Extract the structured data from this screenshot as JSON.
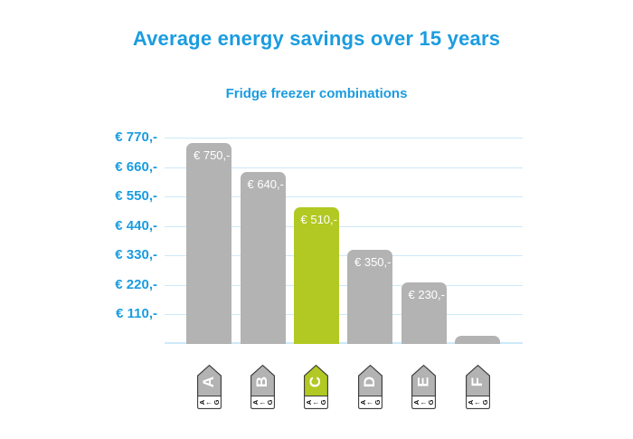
{
  "header": {
    "title": "Average energy savings over 15 years",
    "subtitle": "Fridge freezer combinations"
  },
  "chart_data": {
    "type": "bar",
    "title": "Average energy savings over 15 years",
    "subtitle": "Fridge freezer combinations",
    "categories": [
      "A",
      "B",
      "C",
      "D",
      "E",
      "F"
    ],
    "values": [
      750,
      640,
      510,
      350,
      230,
      30
    ],
    "data_labels": [
      "€ 750,-",
      "€ 640,-",
      "€ 510,-",
      "€ 350,-",
      "€ 230,-",
      ""
    ],
    "y_tick_values": [
      770,
      660,
      550,
      440,
      330,
      220,
      110
    ],
    "y_tick_labels": [
      "€ 770,-",
      "€ 660,-",
      "€ 550,-",
      "€ 440,-",
      "€ 330,-",
      "€ 220,-",
      "€ 110,-"
    ],
    "ylim": [
      0,
      770
    ],
    "grid": true,
    "legend": "none",
    "highlight_index": 2,
    "xaxis_scale": {
      "from": "A",
      "arrow": "←",
      "to": "G"
    },
    "colors": {
      "accent_blue": "#1a9ce0",
      "bar_gray": "#b3b3b3",
      "bar_green": "#b1c922",
      "gridline": "#cde9f8",
      "bar_label_text": "#ffffff",
      "tag_border": "#3d3d3d",
      "tag_scale_text": "#111111",
      "background": "#ffffff"
    }
  }
}
